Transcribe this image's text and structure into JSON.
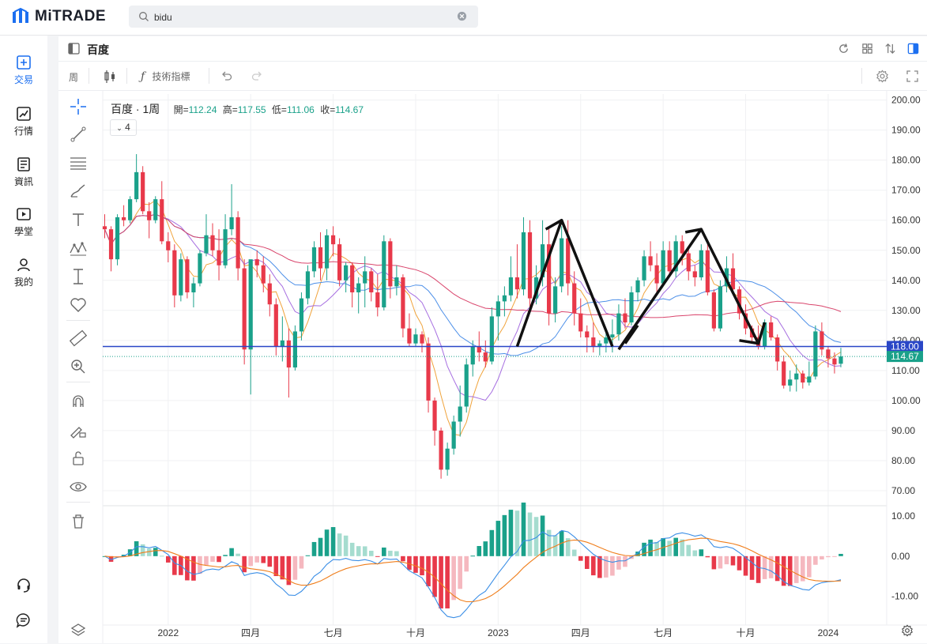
{
  "app": {
    "brand": "MiTRADE"
  },
  "search": {
    "value": "bidu"
  },
  "nav": [
    {
      "label": "交易",
      "icon": "trade-icon"
    },
    {
      "label": "行情",
      "icon": "chart-line-icon"
    },
    {
      "label": "資訊",
      "icon": "news-icon"
    },
    {
      "label": "學堂",
      "icon": "video-icon"
    },
    {
      "label": "我的",
      "icon": "user-icon"
    }
  ],
  "panel": {
    "title": "百度"
  },
  "toolbar": {
    "interval": "周",
    "indicators": "技術指標"
  },
  "legend": {
    "name": "百度 · 1周",
    "open_label": "開=",
    "open": "112.24",
    "high_label": "高=",
    "high": "117.55",
    "low_label": "低=",
    "low": "111.06",
    "close_label": "收=",
    "close": "114.67",
    "collapse": "4"
  },
  "colors": {
    "up": "#1aa18a",
    "down": "#e8394a",
    "hline": "#2a47c7",
    "ma_orange": "#f0a33b",
    "ma_purple": "#a66ee0",
    "ma_blue": "#4c8fe8",
    "ma_pink": "#d9456c"
  },
  "chart_data": [
    {
      "type": "candlestick",
      "title": "百度 · 1周",
      "ylim": [
        65,
        202
      ],
      "price_ticks": [
        "200.00",
        "190.00",
        "180.00",
        "170.00",
        "160.00",
        "150.00",
        "140.00",
        "130.00",
        "120.00",
        "110.00",
        "100.00",
        "90.00",
        "80.00",
        "70.00"
      ],
      "x_ticks": [
        "2022",
        "四月",
        "七月",
        "十月",
        "2023",
        "四月",
        "七月",
        "十月",
        "2024"
      ],
      "x_tick_weeks": [
        10,
        23,
        36,
        49,
        62,
        75,
        88,
        101,
        114
      ],
      "horizontal_line": {
        "value": 118.0,
        "label": "118.00"
      },
      "last_price": {
        "value": 114.67,
        "label": "114.67"
      },
      "candles": [
        [
          158.0,
          162.0,
          154.0,
          157.0
        ],
        [
          157.0,
          158.0,
          143.0,
          147.0
        ],
        [
          147.0,
          162.0,
          145.0,
          161.0
        ],
        [
          161.0,
          165.0,
          158.0,
          160.0
        ],
        [
          160.0,
          168.0,
          159.0,
          167.0
        ],
        [
          167.0,
          182.0,
          166.0,
          176.0
        ],
        [
          176.0,
          178.0,
          162.0,
          163.0
        ],
        [
          163.0,
          166.0,
          154.0,
          160.0
        ],
        [
          160.0,
          168.0,
          159.0,
          167.0
        ],
        [
          167.0,
          173.0,
          152.0,
          153.0
        ],
        [
          153.0,
          156.0,
          146.0,
          150.0
        ],
        [
          150.0,
          152.0,
          131.0,
          135.0
        ],
        [
          135.0,
          149.0,
          133.0,
          147.0
        ],
        [
          147.0,
          148.0,
          134.0,
          136.0
        ],
        [
          136.0,
          141.0,
          131.0,
          139.0
        ],
        [
          139.0,
          150.0,
          138.0,
          149.0
        ],
        [
          149.0,
          162.0,
          148.0,
          155.0
        ],
        [
          155.0,
          159.0,
          148.0,
          150.0
        ],
        [
          150.0,
          157.0,
          140.0,
          145.0
        ],
        [
          145.0,
          162.0,
          144.0,
          157.0
        ],
        [
          157.0,
          172.0,
          155.0,
          161.0
        ],
        [
          161.0,
          163.0,
          140.0,
          144.0
        ],
        [
          144.0,
          147.0,
          112.0,
          117.0
        ],
        [
          117.0,
          146.0,
          102.0,
          147.0
        ],
        [
          147.0,
          150.0,
          141.0,
          145.0
        ],
        [
          145.0,
          148.0,
          136.0,
          139.0
        ],
        [
          139.0,
          142.0,
          128.0,
          132.0
        ],
        [
          132.0,
          134.0,
          115.0,
          118.0
        ],
        [
          118.0,
          128.0,
          113.0,
          120.0
        ],
        [
          120.0,
          124.0,
          101.0,
          111.0
        ],
        [
          111.0,
          125.0,
          110.0,
          123.0
        ],
        [
          123.0,
          136.0,
          120.0,
          134.0
        ],
        [
          134.0,
          145.0,
          132.0,
          143.0
        ],
        [
          143.0,
          153.0,
          141.0,
          151.0
        ],
        [
          151.0,
          156.0,
          140.0,
          144.0
        ],
        [
          144.0,
          157.0,
          140.0,
          155.0
        ],
        [
          155.0,
          158.0,
          148.0,
          152.0
        ],
        [
          152.0,
          154.0,
          138.0,
          140.0
        ],
        [
          140.0,
          146.0,
          136.0,
          145.0
        ],
        [
          145.0,
          146.0,
          131.0,
          136.0
        ],
        [
          136.0,
          141.0,
          129.0,
          139.0
        ],
        [
          139.0,
          148.0,
          131.0,
          143.0
        ],
        [
          143.0,
          144.0,
          133.0,
          136.0
        ],
        [
          136.0,
          142.0,
          128.0,
          131.0
        ],
        [
          131.0,
          155.0,
          130.0,
          153.0
        ],
        [
          153.0,
          154.0,
          134.0,
          138.0
        ],
        [
          138.0,
          145.0,
          135.0,
          141.0
        ],
        [
          141.0,
          142.0,
          121.0,
          124.0
        ],
        [
          124.0,
          129.0,
          118.0,
          119.0
        ],
        [
          119.0,
          124.0,
          118.0,
          122.0
        ],
        [
          122.0,
          123.0,
          116.0,
          119.0
        ],
        [
          119.0,
          121.0,
          96.0,
          100.0
        ],
        [
          100.0,
          101.0,
          85.0,
          90.0
        ],
        [
          90.0,
          91.0,
          74.0,
          77.0
        ],
        [
          77.0,
          86.0,
          75.0,
          84.0
        ],
        [
          84.0,
          95.0,
          82.0,
          93.0
        ],
        [
          93.0,
          105.0,
          88.0,
          98.0
        ],
        [
          98.0,
          114.0,
          96.0,
          112.0
        ],
        [
          112.0,
          120.0,
          108.0,
          118.0
        ],
        [
          118.0,
          123.0,
          113.0,
          116.0
        ],
        [
          116.0,
          120.0,
          111.0,
          113.0
        ],
        [
          113.0,
          131.0,
          112.0,
          128.0
        ],
        [
          128.0,
          135.0,
          120.0,
          133.0
        ],
        [
          133.0,
          138.0,
          128.0,
          135.0
        ],
        [
          135.0,
          148.0,
          133.0,
          141.0
        ],
        [
          141.0,
          152.0,
          134.0,
          137.0
        ],
        [
          137.0,
          161.0,
          135.0,
          156.0
        ],
        [
          156.0,
          160.0,
          131.0,
          134.0
        ],
        [
          134.0,
          145.0,
          132.0,
          141.0
        ],
        [
          141.0,
          160.0,
          138.0,
          152.0
        ],
        [
          152.0,
          158.0,
          125.0,
          129.0
        ],
        [
          129.0,
          141.0,
          126.0,
          138.0
        ],
        [
          138.0,
          158.0,
          136.0,
          154.0
        ],
        [
          154.0,
          160.0,
          135.0,
          139.0
        ],
        [
          139.0,
          143.0,
          125.0,
          129.0
        ],
        [
          129.0,
          134.0,
          121.0,
          123.0
        ],
        [
          123.0,
          125.0,
          116.0,
          121.0
        ],
        [
          121.0,
          126.0,
          116.0,
          118.0
        ],
        [
          118.0,
          120.0,
          115.0,
          119.0
        ],
        [
          119.0,
          124.0,
          116.0,
          121.0
        ],
        [
          121.0,
          127.0,
          116.0,
          122.0
        ],
        [
          122.0,
          132.0,
          120.0,
          129.0
        ],
        [
          129.0,
          134.0,
          124.0,
          126.0
        ],
        [
          126.0,
          138.0,
          125.0,
          136.0
        ],
        [
          136.0,
          141.0,
          133.0,
          140.0
        ],
        [
          140.0,
          150.0,
          138.0,
          148.0
        ],
        [
          148.0,
          153.0,
          143.0,
          145.0
        ],
        [
          145.0,
          149.0,
          136.0,
          139.0
        ],
        [
          139.0,
          153.0,
          138.0,
          150.0
        ],
        [
          150.0,
          153.0,
          141.0,
          143.0
        ],
        [
          143.0,
          155.0,
          141.0,
          153.0
        ],
        [
          153.0,
          155.0,
          145.0,
          149.0
        ],
        [
          149.0,
          151.0,
          140.0,
          143.0
        ],
        [
          143.0,
          145.0,
          138.0,
          141.0
        ],
        [
          141.0,
          152.0,
          140.0,
          150.0
        ],
        [
          150.0,
          152.0,
          135.0,
          136.0
        ],
        [
          136.0,
          137.0,
          123.0,
          124.0
        ],
        [
          124.0,
          140.0,
          123.0,
          138.0
        ],
        [
          138.0,
          148.0,
          136.0,
          144.0
        ],
        [
          144.0,
          149.0,
          136.0,
          137.0
        ],
        [
          137.0,
          138.0,
          127.0,
          129.0
        ],
        [
          129.0,
          132.0,
          122.0,
          124.0
        ],
        [
          124.0,
          125.0,
          119.0,
          121.0
        ],
        [
          121.0,
          125.0,
          117.0,
          118.0
        ],
        [
          118.0,
          127.0,
          117.0,
          126.0
        ],
        [
          126.0,
          128.0,
          120.0,
          121.0
        ],
        [
          121.0,
          122.0,
          110.0,
          113.0
        ],
        [
          113.0,
          115.0,
          104.0,
          105.0
        ],
        [
          105.0,
          110.0,
          103.0,
          107.0
        ],
        [
          107.0,
          112.0,
          103.0,
          109.0
        ],
        [
          109.0,
          110.0,
          104.0,
          106.0
        ],
        [
          106.0,
          113.0,
          105.0,
          108.0
        ],
        [
          108.0,
          125.0,
          107.0,
          123.0
        ],
        [
          123.0,
          126.0,
          115.0,
          117.0
        ],
        [
          117.0,
          118.0,
          111.0,
          114.0
        ],
        [
          114.0,
          116.0,
          109.0,
          112.0
        ],
        [
          112.24,
          117.55,
          111.06,
          114.67
        ]
      ],
      "macd_panel": {
        "ylim": [
          -17,
          12
        ],
        "ticks": [
          "10.00",
          "0.00",
          "-10.00"
        ]
      }
    }
  ]
}
